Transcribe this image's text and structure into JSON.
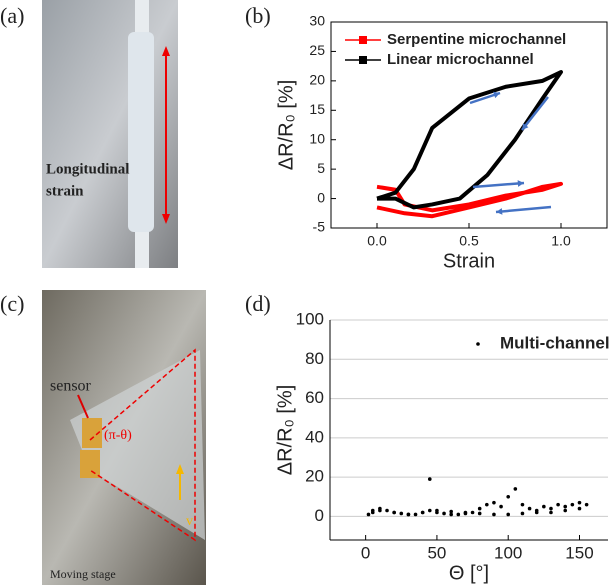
{
  "photos": [
    {
      "label": "(a)",
      "annotation": [
        "Longitudinal",
        "strain"
      ]
    },
    {
      "label": "(c)",
      "annotation": [
        "sensor",
        "(π-θ)",
        "v",
        "Moving stage"
      ]
    }
  ],
  "chart_data": [
    {
      "type": "line",
      "label": "(b)",
      "xlabel": "Strain",
      "ylabel": "ΔR/R₀ [%]",
      "xlim": [
        -0.25,
        1.25
      ],
      "ylim": [
        -5,
        30
      ],
      "xticks": [
        {
          "value": 0,
          "label": "0.0"
        },
        {
          "value": 0.5,
          "label": "0.5"
        },
        {
          "value": 1,
          "label": "1.0"
        }
      ],
      "yticks": [
        -5,
        0,
        5,
        10,
        15,
        20,
        25,
        30
      ],
      "legend": "upper right",
      "series": [
        {
          "name": "Serpentine microchannel",
          "color": "#ff0000",
          "x": [
            0,
            0.1,
            0.15,
            0.3,
            0.5,
            0.7,
            0.9,
            1.0,
            0.9,
            0.7,
            0.5,
            0.3,
            0.15,
            0
          ],
          "values": [
            2,
            1.5,
            -1,
            -2,
            -1,
            0.5,
            1.5,
            2.5,
            2,
            0,
            -1.5,
            -3,
            -2.5,
            -1.5
          ]
        },
        {
          "name": "Linear microchannel",
          "color": "#000000",
          "x": [
            0,
            0.1,
            0.2,
            0.3,
            0.5,
            0.7,
            0.9,
            1.0,
            0.9,
            0.75,
            0.6,
            0.45,
            0.3,
            0.2,
            0.1,
            0
          ],
          "values": [
            0,
            1,
            5,
            12,
            17,
            19,
            20,
            21.5,
            17,
            10,
            4,
            0,
            -1,
            -1.5,
            0,
            0
          ]
        }
      ]
    },
    {
      "type": "scatter",
      "label": "(d)",
      "xlabel": "Θ [°]",
      "ylabel": "ΔR/R₀ [%]",
      "xlim": [
        -25,
        170
      ],
      "ylim": [
        -12,
        100
      ],
      "xticks": [
        0,
        50,
        100,
        150
      ],
      "yticks": [
        0,
        20,
        40,
        60,
        80,
        100
      ],
      "grid": true,
      "legend": "upper right",
      "series": [
        {
          "name": "Multi-channel",
          "color": "#000000",
          "x": [
            2,
            5,
            10,
            15,
            20,
            25,
            30,
            35,
            40,
            45,
            50,
            55,
            60,
            65,
            70,
            75,
            80,
            85,
            90,
            95,
            100,
            105,
            110,
            115,
            120,
            125,
            130,
            135,
            140,
            145,
            150,
            155,
            150,
            140,
            130,
            120,
            110,
            100,
            90,
            80,
            70,
            60,
            50,
            45,
            40,
            30,
            20,
            10,
            5
          ],
          "values": [
            1,
            3,
            4,
            3,
            2,
            1.5,
            1,
            1,
            2,
            3,
            2,
            1.5,
            1,
            1,
            1.5,
            2,
            4,
            6,
            7,
            5,
            10,
            14,
            6,
            4,
            3,
            5,
            4,
            6,
            5,
            6,
            7,
            6,
            4,
            3,
            2,
            2,
            1.5,
            1,
            1,
            1.5,
            2,
            2.5,
            3,
            19,
            2,
            1,
            2,
            3,
            2
          ]
        }
      ]
    }
  ]
}
